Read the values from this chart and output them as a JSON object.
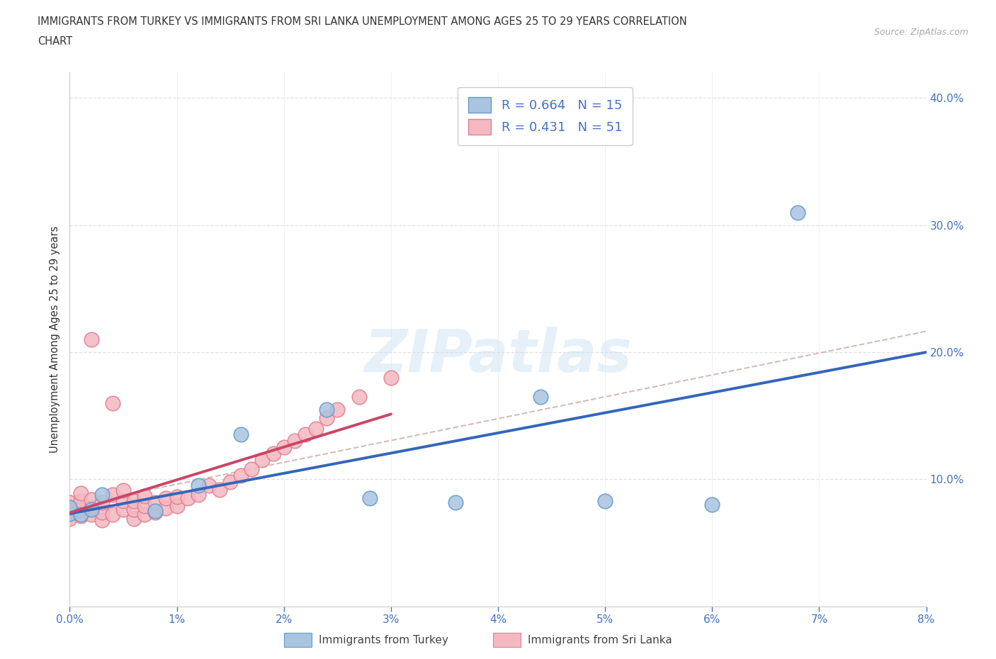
{
  "title_line1": "IMMIGRANTS FROM TURKEY VS IMMIGRANTS FROM SRI LANKA UNEMPLOYMENT AMONG AGES 25 TO 29 YEARS CORRELATION",
  "title_line2": "CHART",
  "source": "Source: ZipAtlas.com",
  "ylabel": "Unemployment Among Ages 25 to 29 years",
  "xlim": [
    0.0,
    0.08
  ],
  "ylim": [
    0.0,
    0.42
  ],
  "xticks": [
    0.0,
    0.01,
    0.02,
    0.03,
    0.04,
    0.05,
    0.06,
    0.07,
    0.08
  ],
  "yticks": [
    0.0,
    0.1,
    0.2,
    0.3,
    0.4
  ],
  "turkey_color": "#a8c4e0",
  "turkey_edge": "#6699cc",
  "srilanka_color": "#f4b8c1",
  "srilanka_edge": "#e08090",
  "turkey_line_color": "#3366bb",
  "srilanka_line_color": "#cc4466",
  "overall_line_color": "#bbaaaa",
  "turkey_R": 0.664,
  "turkey_N": 15,
  "srilanka_R": 0.431,
  "srilanka_N": 51,
  "watermark": "ZIPatlas",
  "background_color": "#ffffff",
  "grid_color": "#dddddd",
  "right_tick_color": "#4472c4",
  "bottom_tick_color": "#4472c4",
  "turkey_x": [
    0.0,
    0.0,
    0.001,
    0.002,
    0.003,
    0.008,
    0.012,
    0.016,
    0.024,
    0.028,
    0.036,
    0.044,
    0.05,
    0.06,
    0.068
  ],
  "turkey_y": [
    0.073,
    0.078,
    0.072,
    0.076,
    0.088,
    0.075,
    0.095,
    0.135,
    0.155,
    0.085,
    0.082,
    0.165,
    0.083,
    0.08,
    0.31
  ],
  "srilanka_x": [
    0.0,
    0.0,
    0.0,
    0.0,
    0.0,
    0.001,
    0.001,
    0.001,
    0.001,
    0.002,
    0.002,
    0.002,
    0.002,
    0.003,
    0.003,
    0.003,
    0.004,
    0.004,
    0.004,
    0.005,
    0.005,
    0.005,
    0.006,
    0.006,
    0.006,
    0.007,
    0.007,
    0.007,
    0.008,
    0.008,
    0.009,
    0.009,
    0.01,
    0.01,
    0.011,
    0.012,
    0.013,
    0.014,
    0.015,
    0.016,
    0.017,
    0.018,
    0.019,
    0.02,
    0.021,
    0.022,
    0.023,
    0.024,
    0.025,
    0.027,
    0.03
  ],
  "srilanka_y": [
    0.073,
    0.078,
    0.082,
    0.069,
    0.075,
    0.071,
    0.076,
    0.083,
    0.089,
    0.072,
    0.077,
    0.084,
    0.21,
    0.068,
    0.074,
    0.082,
    0.088,
    0.072,
    0.16,
    0.076,
    0.083,
    0.091,
    0.069,
    0.076,
    0.083,
    0.072,
    0.079,
    0.087,
    0.074,
    0.082,
    0.077,
    0.085,
    0.079,
    0.086,
    0.085,
    0.088,
    0.095,
    0.092,
    0.098,
    0.103,
    0.108,
    0.115,
    0.12,
    0.125,
    0.13,
    0.135,
    0.14,
    0.148,
    0.155,
    0.165,
    0.18
  ]
}
